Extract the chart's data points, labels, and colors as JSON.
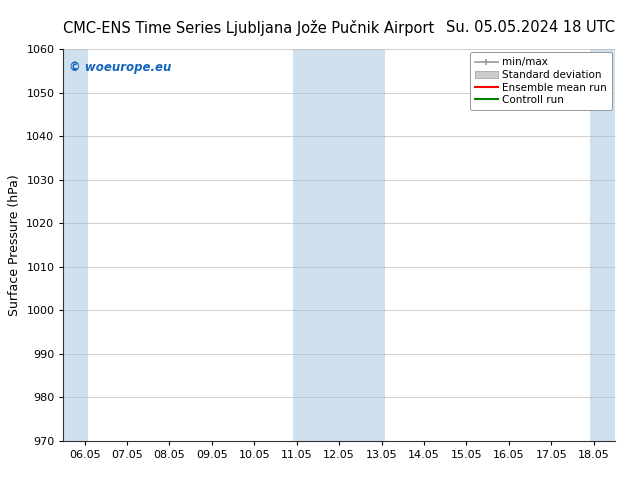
{
  "title_left": "CMC-ENS Time Series Ljubljana Jože Pučnik Airport",
  "title_right": "Su. 05.05.2024 18 UTC",
  "ylabel": "Surface Pressure (hPa)",
  "ylim": [
    970,
    1060
  ],
  "yticks": [
    970,
    980,
    990,
    1000,
    1010,
    1020,
    1030,
    1040,
    1050,
    1060
  ],
  "xtick_labels": [
    "06.05",
    "07.05",
    "08.05",
    "09.05",
    "10.05",
    "11.05",
    "12.05",
    "13.05",
    "14.05",
    "15.05",
    "16.05",
    "17.05",
    "18.05"
  ],
  "xtick_positions": [
    0,
    1,
    2,
    3,
    4,
    5,
    6,
    7,
    8,
    9,
    10,
    11,
    12
  ],
  "xlim": [
    -0.5,
    12.5
  ],
  "shaded_bands": [
    {
      "xmin": -0.5,
      "xmax": 0.08,
      "color": "#cfe0ef"
    },
    {
      "xmin": 4.92,
      "xmax": 7.08,
      "color": "#cfe0ef"
    },
    {
      "xmin": 11.92,
      "xmax": 12.5,
      "color": "#cfe0ef"
    }
  ],
  "watermark_text": "© woeurope.eu",
  "watermark_color": "#1565c0",
  "legend_entries": [
    {
      "label": "min/max",
      "color": "#aaaaaa",
      "style": "hline"
    },
    {
      "label": "Standard deviation",
      "color": "#cccccc",
      "style": "bar"
    },
    {
      "label": "Ensemble mean run",
      "color": "red",
      "style": "line"
    },
    {
      "label": "Controll run",
      "color": "green",
      "style": "line"
    }
  ],
  "bg_color": "#ffffff",
  "plot_bg_color": "#ffffff",
  "title_fontsize": 10.5,
  "tick_fontsize": 8,
  "ylabel_fontsize": 9,
  "watermark_fontsize": 8.5
}
